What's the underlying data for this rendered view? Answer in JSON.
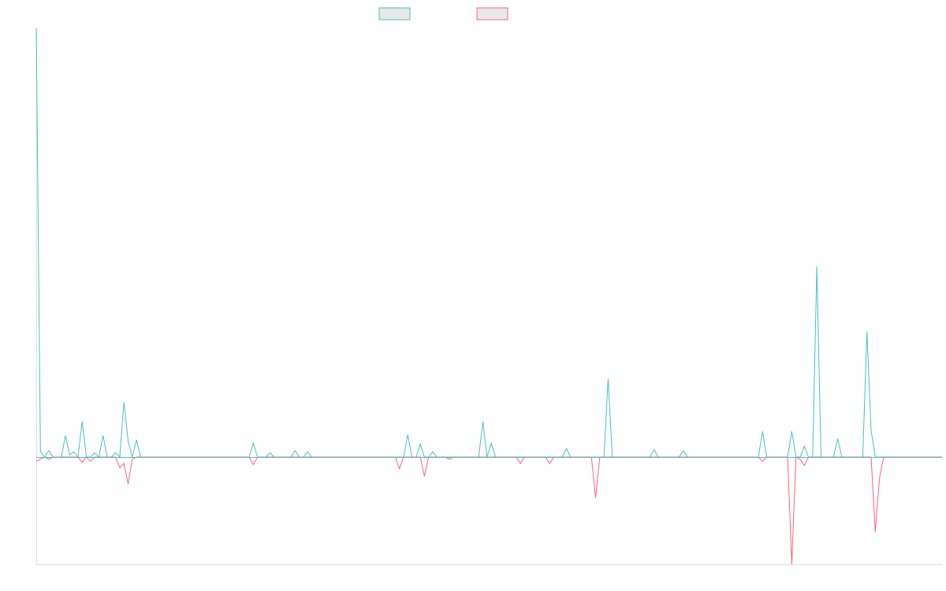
{
  "chart_data": {
    "type": "line",
    "title": "",
    "xlabel": "",
    "ylabel": "",
    "grid": false,
    "legend_position": "top-center",
    "ylim": [
      -100,
      400
    ],
    "x_count": 218,
    "series": [
      {
        "color": "#4bc0c0",
        "fill": "#e8e8e8",
        "direction": "up",
        "points": [
          [
            0,
            400
          ],
          [
            1,
            5
          ],
          [
            3,
            6
          ],
          [
            4,
            0
          ],
          [
            7,
            20
          ],
          [
            8,
            2
          ],
          [
            9,
            5
          ],
          [
            11,
            33
          ],
          [
            12,
            0
          ],
          [
            14,
            4
          ],
          [
            16,
            20
          ],
          [
            19,
            4
          ],
          [
            21,
            51
          ],
          [
            22,
            15
          ],
          [
            23,
            0
          ],
          [
            24,
            16
          ],
          [
            25,
            0
          ],
          [
            31,
            0
          ],
          [
            52,
            13
          ],
          [
            56,
            4
          ],
          [
            62,
            6
          ],
          [
            65,
            5
          ],
          [
            89,
            21
          ],
          [
            90,
            0
          ],
          [
            92,
            12
          ],
          [
            93,
            0
          ],
          [
            95,
            5
          ],
          [
            107,
            33
          ],
          [
            108,
            0
          ],
          [
            109,
            13
          ],
          [
            110,
            0
          ],
          [
            127,
            8
          ],
          [
            131,
            0
          ],
          [
            137,
            73
          ],
          [
            138,
            0
          ],
          [
            148,
            7
          ],
          [
            150,
            0
          ],
          [
            155,
            6
          ],
          [
            174,
            24
          ],
          [
            175,
            0
          ],
          [
            181,
            24
          ],
          [
            182,
            0
          ],
          [
            184,
            10
          ],
          [
            185,
            0
          ],
          [
            187,
            178
          ],
          [
            188,
            0
          ],
          [
            192,
            17
          ],
          [
            193,
            0
          ],
          [
            199,
            117
          ],
          [
            200,
            25
          ],
          [
            201,
            0
          ]
        ]
      },
      {
        "color": "#ff6384",
        "fill": "#e8e8e8",
        "direction": "down",
        "points": [
          [
            0,
            -4
          ],
          [
            1,
            -2
          ],
          [
            3,
            -2
          ],
          [
            4,
            0
          ],
          [
            11,
            -5
          ],
          [
            12,
            0
          ],
          [
            13,
            -4
          ],
          [
            14,
            0
          ],
          [
            20,
            -10
          ],
          [
            21,
            -6
          ],
          [
            22,
            -25
          ],
          [
            23,
            -2
          ],
          [
            24,
            0
          ],
          [
            52,
            -7
          ],
          [
            53,
            0
          ],
          [
            87,
            -11
          ],
          [
            88,
            0
          ],
          [
            93,
            -18
          ],
          [
            94,
            0
          ],
          [
            99,
            -2
          ],
          [
            100,
            0
          ],
          [
            116,
            -6
          ],
          [
            117,
            0
          ],
          [
            123,
            -6
          ],
          [
            124,
            0
          ],
          [
            134,
            -38
          ],
          [
            135,
            0
          ],
          [
            174,
            -4
          ],
          [
            175,
            0
          ],
          [
            181,
            -100
          ],
          [
            182,
            0
          ],
          [
            183,
            -2
          ],
          [
            184,
            -8
          ],
          [
            185,
            0
          ],
          [
            201,
            -70
          ],
          [
            202,
            -20
          ],
          [
            203,
            0
          ]
        ]
      }
    ]
  }
}
